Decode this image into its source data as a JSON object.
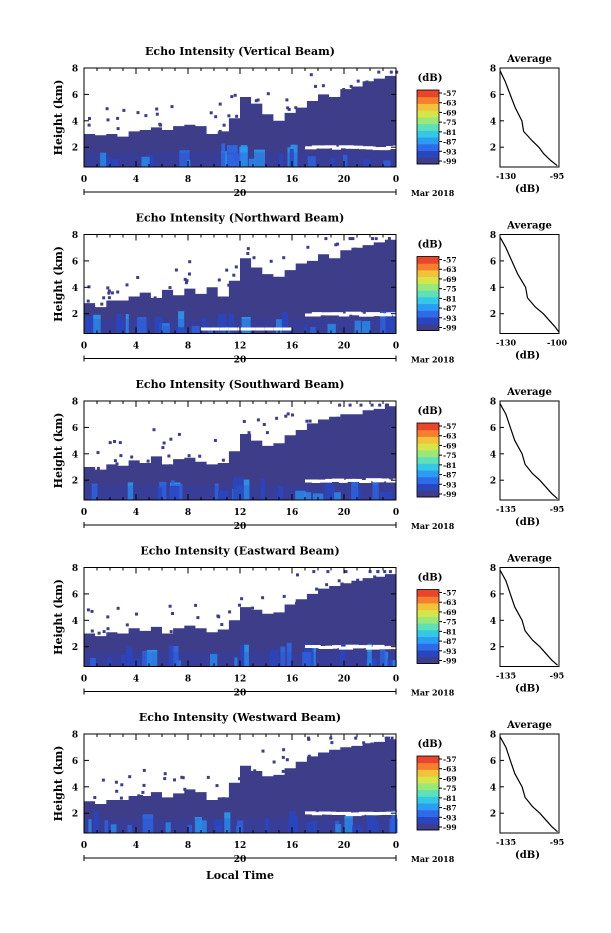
{
  "figure": {
    "xlabel": "Local Time"
  },
  "colorbar": {
    "unit": "(dB)",
    "ticks": [
      "-57",
      "-63",
      "-69",
      "-75",
      "-81",
      "-87",
      "-93",
      "-99"
    ],
    "colors": [
      "#3d3d8a",
      "#2a45c0",
      "#2f6be8",
      "#2b9cf3",
      "#34c8e6",
      "#5fe0b8",
      "#9ae87a",
      "#d6e64a",
      "#f2c23a",
      "#f57f2e",
      "#e8452a"
    ]
  },
  "panels": [
    {
      "title": "Echo Intensity (Vertical Beam)",
      "ylabel": "Height (km)",
      "yticks": [
        "2",
        "4",
        "6",
        "8"
      ],
      "xticks": [
        "0",
        "4",
        "8",
        "12",
        "16",
        "20",
        "0"
      ],
      "date_day": "20",
      "date_month": "Mar 2018",
      "avg_title": "Average",
      "avg_xticks": [
        "-130",
        "-95"
      ],
      "avg_xlabel": "(dB)"
    },
    {
      "title": "Echo Intensity (Northward Beam)",
      "ylabel": "Height (km)",
      "yticks": [
        "2",
        "4",
        "6",
        "8"
      ],
      "xticks": [
        "0",
        "4",
        "8",
        "12",
        "16",
        "20",
        "0"
      ],
      "date_day": "20",
      "date_month": "Mar 2018",
      "avg_title": "Average",
      "avg_xticks": [
        "-130",
        "-100"
      ],
      "avg_xlabel": "(dB)"
    },
    {
      "title": "Echo Intensity (Southward Beam)",
      "ylabel": "Height (km)",
      "yticks": [
        "2",
        "4",
        "6",
        "8"
      ],
      "xticks": [
        "0",
        "4",
        "8",
        "12",
        "16",
        "20",
        "0"
      ],
      "date_day": "20",
      "date_month": "Mar 2018",
      "avg_title": "Average",
      "avg_xticks": [
        "-135",
        "-95"
      ],
      "avg_xlabel": "(dB)"
    },
    {
      "title": "Echo Intensity (Eastward Beam)",
      "ylabel": "Height (km)",
      "yticks": [
        "2",
        "4",
        "6",
        "8"
      ],
      "xticks": [
        "0",
        "4",
        "8",
        "12",
        "16",
        "20",
        "0"
      ],
      "date_day": "20",
      "date_month": "Mar 2018",
      "avg_title": "Average",
      "avg_xticks": [
        "-135",
        "-95"
      ],
      "avg_xlabel": "(dB)"
    },
    {
      "title": "Echo Intensity (Westward Beam)",
      "ylabel": "Height (km)",
      "yticks": [
        "2",
        "4",
        "6",
        "8"
      ],
      "xticks": [
        "0",
        "4",
        "8",
        "12",
        "16",
        "20",
        "0"
      ],
      "date_day": "20",
      "date_month": "Mar 2018",
      "avg_title": "Average",
      "avg_xticks": [
        "-135",
        "-95"
      ],
      "avg_xlabel": "(dB)"
    }
  ],
  "chart_data": {
    "type": "heatmap",
    "x_unit": "hour (local time)",
    "xlim": [
      0,
      24
    ],
    "ylim": [
      0.5,
      8
    ],
    "clim": [
      -99,
      -57
    ],
    "echo_top_height_km": [
      [
        3.0,
        2.9,
        3.0,
        2.8,
        3.2,
        3.3,
        3.5,
        3.3,
        3.6,
        3.7,
        3.6,
        3.0,
        3.2,
        4.2,
        5.8,
        5.3,
        4.5,
        4.0,
        4.6,
        5.0,
        5.5,
        6.0,
        5.8,
        6.4,
        6.6,
        7.0,
        7.2,
        7.4
      ],
      [
        2.8,
        2.5,
        3.0,
        3.0,
        3.3,
        3.6,
        3.2,
        3.8,
        3.4,
        3.9,
        3.5,
        4.0,
        3.3,
        4.5,
        6.2,
        5.5,
        5.0,
        4.8,
        5.3,
        5.8,
        6.0,
        6.5,
        6.2,
        6.8,
        7.0,
        7.2,
        7.4,
        7.6
      ],
      [
        3.0,
        2.8,
        3.2,
        3.1,
        3.5,
        3.3,
        3.8,
        3.2,
        3.6,
        3.7,
        3.4,
        3.2,
        3.3,
        4.2,
        5.5,
        5.0,
        4.6,
        4.8,
        5.4,
        5.8,
        6.3,
        6.6,
        6.8,
        7.0,
        7.0,
        7.3,
        7.4,
        7.6
      ],
      [
        3.0,
        2.8,
        3.1,
        3.0,
        3.4,
        3.2,
        3.5,
        3.0,
        3.4,
        3.6,
        3.4,
        3.1,
        3.3,
        4.0,
        5.0,
        4.8,
        4.5,
        4.6,
        5.2,
        5.6,
        6.0,
        6.4,
        6.6,
        6.8,
        7.0,
        7.2,
        7.3,
        7.5
      ],
      [
        2.9,
        2.7,
        3.0,
        3.0,
        3.3,
        3.3,
        3.6,
        3.2,
        3.5,
        3.8,
        3.6,
        3.0,
        3.2,
        4.3,
        5.6,
        5.2,
        4.8,
        4.9,
        5.4,
        5.9,
        6.3,
        6.6,
        6.8,
        7.0,
        7.1,
        7.3,
        7.4,
        7.6
      ]
    ],
    "bright_layer_height_km": 2.0,
    "average_profiles": [
      {
        "xlim": [
          -130,
          -95
        ],
        "height_km": [
          7.8,
          7.0,
          6.0,
          5.0,
          4.0,
          3.2,
          2.5,
          2.0,
          1.5,
          1.0,
          0.6
        ],
        "intensity_db": [
          -130,
          -127,
          -124,
          -121,
          -117,
          -116,
          -111,
          -107,
          -104,
          -100,
          -96
        ]
      },
      {
        "xlim": [
          -130,
          -100
        ],
        "height_km": [
          7.8,
          7.0,
          6.0,
          5.0,
          4.0,
          3.2,
          2.5,
          2.0,
          1.5,
          1.0,
          0.6
        ],
        "intensity_db": [
          -130,
          -127,
          -124,
          -121,
          -117,
          -116,
          -112,
          -108,
          -105,
          -102,
          -100
        ]
      },
      {
        "xlim": [
          -135,
          -95
        ],
        "height_km": [
          7.8,
          7.0,
          6.0,
          5.0,
          4.0,
          3.2,
          2.5,
          2.0,
          1.5,
          1.0,
          0.6
        ],
        "intensity_db": [
          -135,
          -131,
          -128,
          -125,
          -120,
          -118,
          -113,
          -108,
          -104,
          -100,
          -96
        ]
      },
      {
        "xlim": [
          -135,
          -95
        ],
        "height_km": [
          7.8,
          7.0,
          6.0,
          5.0,
          4.0,
          3.2,
          2.5,
          2.0,
          1.5,
          1.0,
          0.6
        ],
        "intensity_db": [
          -135,
          -131,
          -128,
          -125,
          -120,
          -118,
          -113,
          -108,
          -104,
          -100,
          -96
        ]
      },
      {
        "xlim": [
          -135,
          -95
        ],
        "height_km": [
          7.8,
          7.0,
          6.0,
          5.0,
          4.0,
          3.2,
          2.5,
          2.0,
          1.5,
          1.0,
          0.6
        ],
        "intensity_db": [
          -135,
          -131,
          -128,
          -125,
          -120,
          -118,
          -113,
          -108,
          -104,
          -100,
          -96
        ]
      }
    ]
  }
}
